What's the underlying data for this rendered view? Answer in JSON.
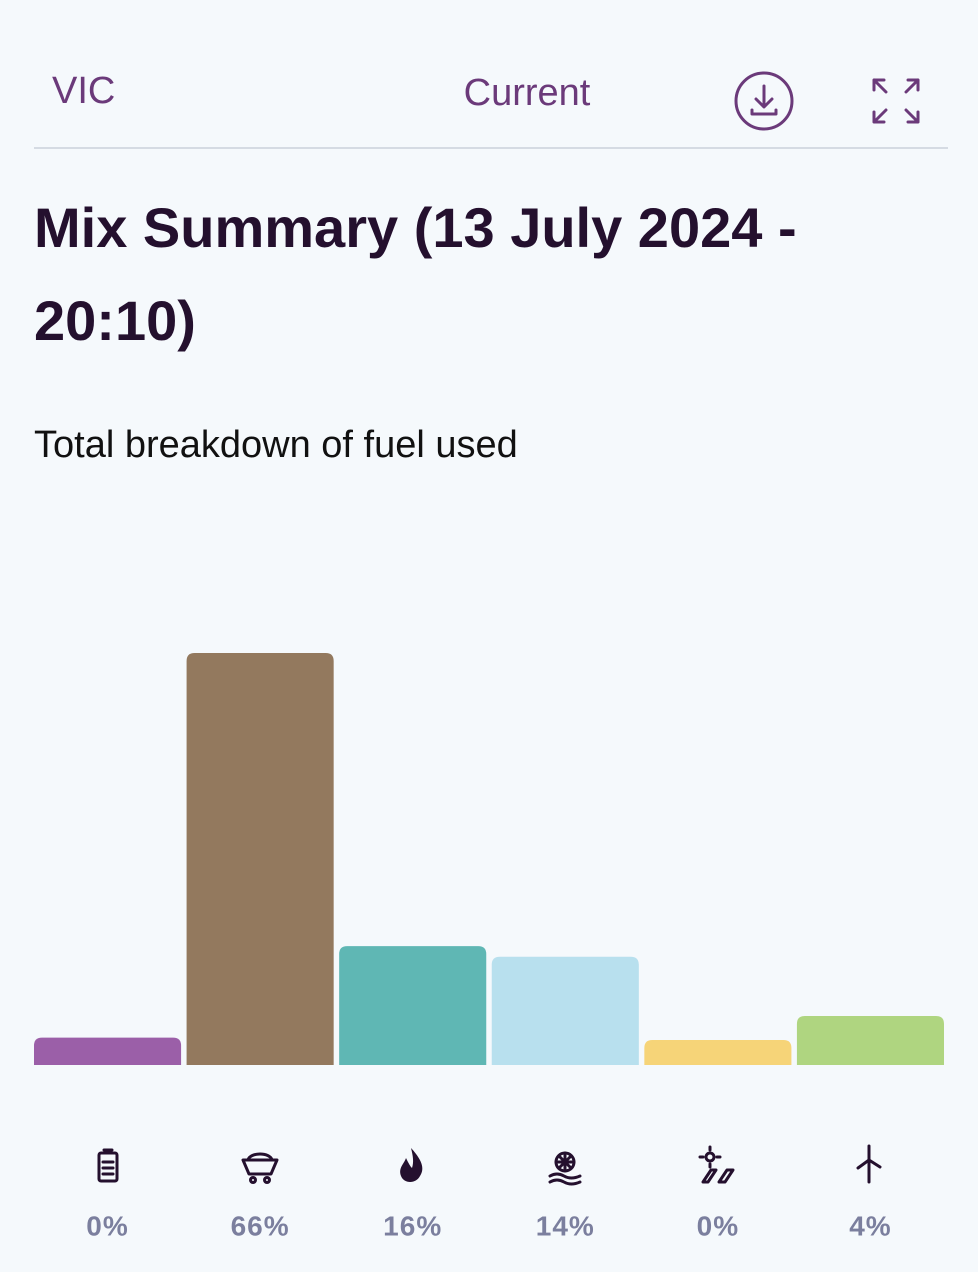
{
  "header": {
    "region": "VIC",
    "view": "Current"
  },
  "chart_data": {
    "type": "bar",
    "title": "Mix Summary (13 July 2024 -",
    "title_line2": "20:10)",
    "subtitle": "Total breakdown of fuel used",
    "values": [
      0.4,
      66,
      16,
      14.2,
      0,
      4.1
    ],
    "value_labels": [
      "0%",
      "66%",
      "16%",
      "14%",
      "0%",
      "4%"
    ],
    "colors": [
      "#9b5fa8",
      "#93795e",
      "#5fb7b4",
      "#b8e0ee",
      "#f6d478",
      "#afd580"
    ]
  }
}
